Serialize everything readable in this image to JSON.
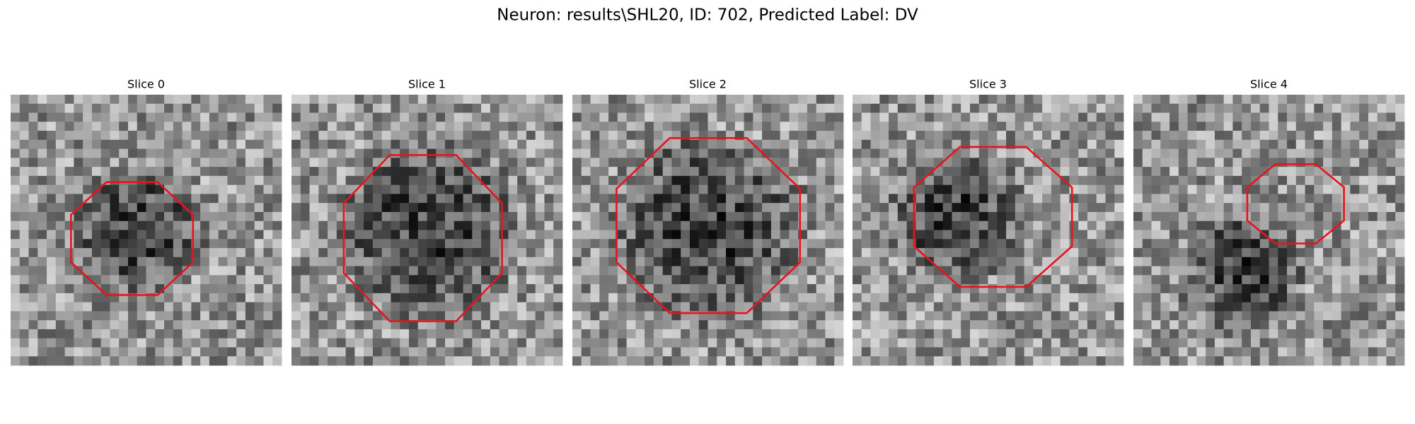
{
  "title": "Neuron: results\\SHL20, ID: 702, Predicted Label: DV",
  "panels": [
    {
      "title": "Slice 0"
    },
    {
      "title": "Slice 1"
    },
    {
      "title": "Slice 2"
    },
    {
      "title": "Slice 3"
    },
    {
      "title": "Slice 4"
    }
  ]
}
